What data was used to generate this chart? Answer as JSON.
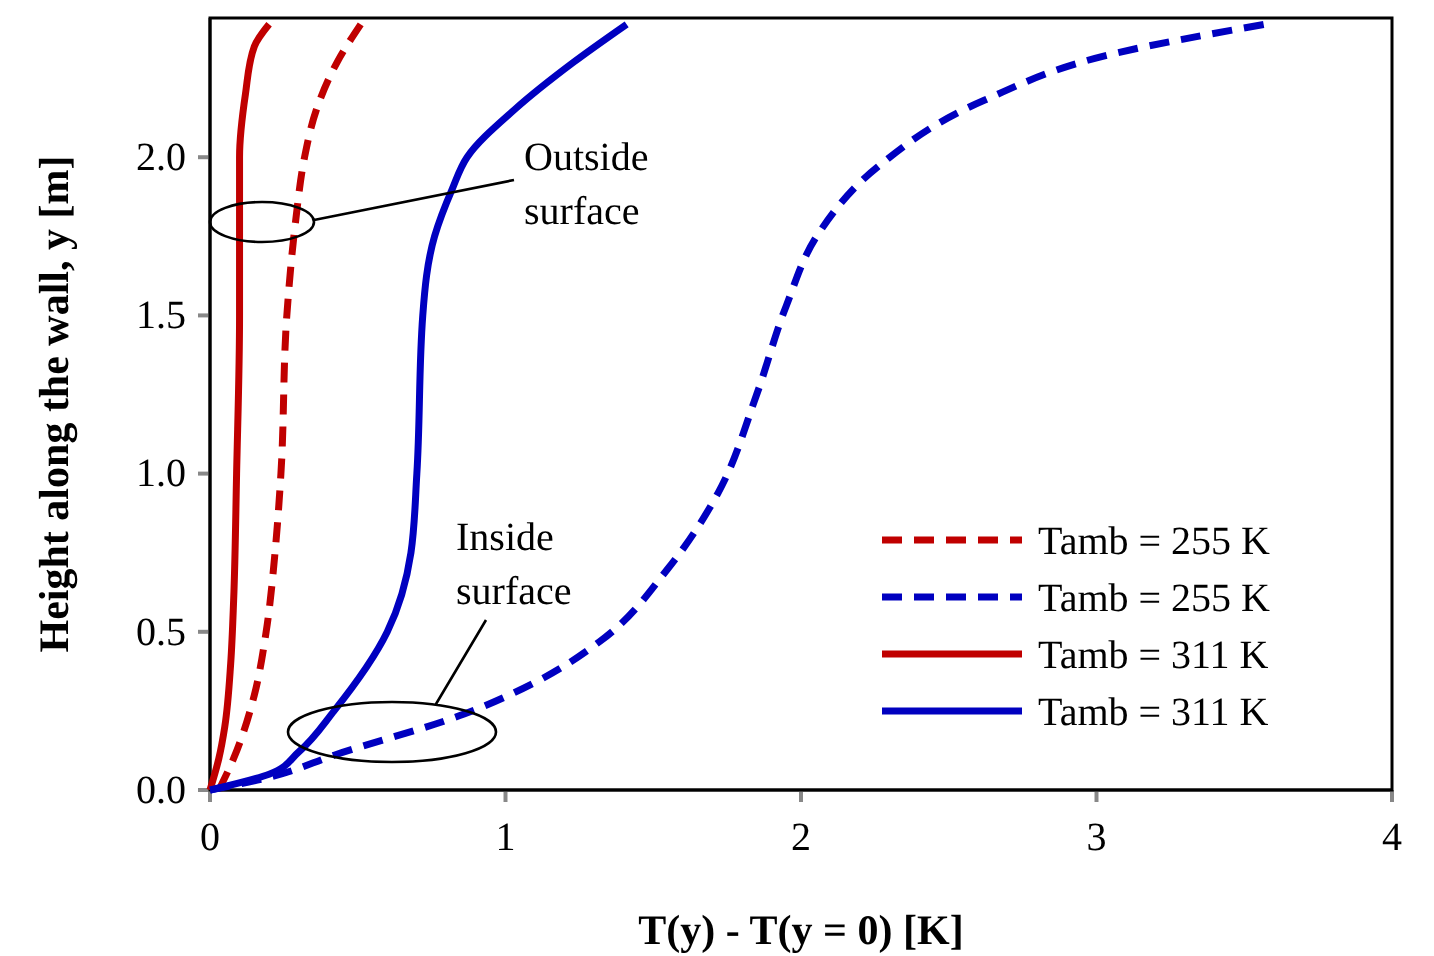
{
  "chart_data": {
    "type": "line",
    "xlabel": "T(y) - T(y = 0) [K]",
    "ylabel": "Height along the wall, y [m]",
    "xlim": [
      0,
      4
    ],
    "xticks": [
      0,
      1,
      2,
      3,
      4
    ],
    "ylim": [
      0,
      2.44
    ],
    "yticks": [
      {
        "value": 0,
        "label": "0.0"
      },
      {
        "value": 0.5,
        "label": "0.5"
      },
      {
        "value": 1,
        "label": "1.0"
      },
      {
        "value": 1.5,
        "label": "1.5"
      },
      {
        "value": 2,
        "label": "2.0"
      }
    ],
    "grid": false,
    "legend": "bottom right",
    "annotations": [
      "Outside surface",
      "Inside surface"
    ],
    "series": [
      {
        "name": "Tamb = 255 K",
        "color": "#c00000",
        "line_style": "dashed",
        "x": [
          0.03,
          0.08,
          0.15,
          0.19,
          0.22,
          0.24,
          0.26,
          0.29,
          0.32,
          0.36,
          0.43,
          0.51
        ],
        "values": [
          0,
          0.1,
          0.3,
          0.5,
          0.75,
          1.0,
          1.5,
          1.8,
          2.0,
          2.15,
          2.3,
          2.42
        ]
      },
      {
        "name": "Tamb = 255 K",
        "color": "#0000c0",
        "line_style": "dashed",
        "x": [
          0,
          0.2,
          0.42,
          0.86,
          1.1,
          1.32,
          1.55,
          1.72,
          1.85,
          1.95,
          2.06,
          2.26,
          2.62,
          3.07,
          3.57
        ],
        "values": [
          0,
          0.04,
          0.11,
          0.24,
          0.34,
          0.47,
          0.7,
          0.94,
          1.25,
          1.53,
          1.76,
          1.97,
          2.18,
          2.33,
          2.42
        ]
      },
      {
        "name": "Tamb = 311 K",
        "color": "#c00000",
        "line_style": "solid",
        "x": [
          0,
          0.03,
          0.05,
          0.07,
          0.08,
          0.09,
          0.1,
          0.1,
          0.12,
          0.15,
          0.2
        ],
        "values": [
          0,
          0.1,
          0.2,
          0.4,
          0.6,
          1.0,
          1.5,
          2.0,
          2.2,
          2.35,
          2.42
        ]
      },
      {
        "name": "Tamb = 311 K",
        "color": "#0000c0",
        "line_style": "solid",
        "x": [
          0,
          0.2,
          0.3,
          0.42,
          0.6,
          0.68,
          0.7,
          0.72,
          0.76,
          0.82,
          0.87,
          1.03,
          1.23,
          1.41
        ],
        "values": [
          0,
          0.05,
          0.12,
          0.25,
          0.5,
          0.75,
          1.0,
          1.5,
          1.75,
          1.9,
          2.0,
          2.15,
          2.3,
          2.42
        ]
      }
    ]
  }
}
